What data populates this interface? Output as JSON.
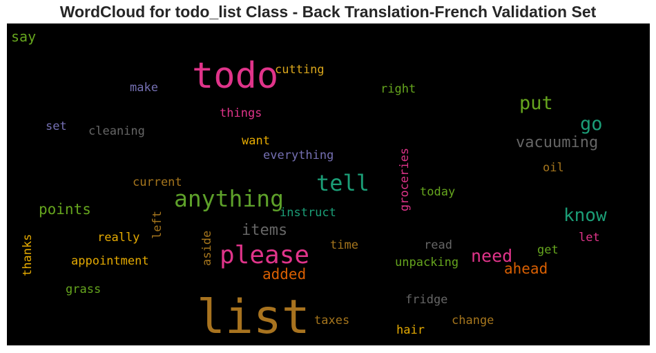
{
  "title": "WordCloud for todo_list Class - Back Translation-French Validation Set",
  "words": [
    {
      "text": "list",
      "color": "#a8731f",
      "size": 68,
      "vertical": false
    },
    {
      "text": "todo",
      "color": "#e0348a",
      "size": 52,
      "vertical": false
    },
    {
      "text": "please",
      "color": "#e0348a",
      "size": 36,
      "vertical": false
    },
    {
      "text": "anything",
      "color": "#5ea12a",
      "size": 33,
      "vertical": false
    },
    {
      "text": "tell",
      "color": "#1b9e77",
      "size": 32,
      "vertical": false
    },
    {
      "text": "put",
      "color": "#66a61e",
      "size": 27,
      "vertical": false
    },
    {
      "text": "go",
      "color": "#1b9e77",
      "size": 27,
      "vertical": false
    },
    {
      "text": "know",
      "color": "#1b9e77",
      "size": 26,
      "vertical": false
    },
    {
      "text": "need",
      "color": "#e0348a",
      "size": 25,
      "vertical": false
    },
    {
      "text": "vacuuming",
      "color": "#666666",
      "size": 22,
      "vertical": false
    },
    {
      "text": "items",
      "color": "#666666",
      "size": 22,
      "vertical": false
    },
    {
      "text": "points",
      "color": "#66a61e",
      "size": 21,
      "vertical": false
    },
    {
      "text": "ahead",
      "color": "#d95f02",
      "size": 21,
      "vertical": false
    },
    {
      "text": "added",
      "color": "#d95f02",
      "size": 21,
      "vertical": false
    },
    {
      "text": "say",
      "color": "#66a61e",
      "size": 20,
      "vertical": false
    },
    {
      "text": "cutting",
      "color": "#d9a61c",
      "size": 17,
      "vertical": false
    },
    {
      "text": "make",
      "color": "#7570b3",
      "size": 17,
      "vertical": false
    },
    {
      "text": "right",
      "color": "#66a61e",
      "size": 17,
      "vertical": false
    },
    {
      "text": "things",
      "color": "#e0348a",
      "size": 17,
      "vertical": false
    },
    {
      "text": "set",
      "color": "#7570b3",
      "size": 17,
      "vertical": false
    },
    {
      "text": "cleaning",
      "color": "#666666",
      "size": 17,
      "vertical": false
    },
    {
      "text": "want",
      "color": "#e6ab02",
      "size": 17,
      "vertical": false
    },
    {
      "text": "everything",
      "color": "#7570b3",
      "size": 17,
      "vertical": false
    },
    {
      "text": "oil",
      "color": "#a6761d",
      "size": 17,
      "vertical": false
    },
    {
      "text": "current",
      "color": "#a6761d",
      "size": 17,
      "vertical": false
    },
    {
      "text": "today",
      "color": "#66a61e",
      "size": 17,
      "vertical": false
    },
    {
      "text": "instruct",
      "color": "#1b9e77",
      "size": 17,
      "vertical": false
    },
    {
      "text": "really",
      "color": "#e6ab02",
      "size": 17,
      "vertical": false
    },
    {
      "text": "let",
      "color": "#e0348a",
      "size": 17,
      "vertical": false
    },
    {
      "text": "read",
      "color": "#666666",
      "size": 17,
      "vertical": false
    },
    {
      "text": "time",
      "color": "#a6761d",
      "size": 17,
      "vertical": false
    },
    {
      "text": "get",
      "color": "#66a61e",
      "size": 17,
      "vertical": false
    },
    {
      "text": "appointment",
      "color": "#e6ab02",
      "size": 17,
      "vertical": false
    },
    {
      "text": "unpacking",
      "color": "#66a61e",
      "size": 17,
      "vertical": false
    },
    {
      "text": "grass",
      "color": "#66a61e",
      "size": 17,
      "vertical": false
    },
    {
      "text": "fridge",
      "color": "#666666",
      "size": 17,
      "vertical": false
    },
    {
      "text": "taxes",
      "color": "#a6761d",
      "size": 17,
      "vertical": false
    },
    {
      "text": "change",
      "color": "#a6761d",
      "size": 17,
      "vertical": false
    },
    {
      "text": "hair",
      "color": "#e6ab02",
      "size": 17,
      "vertical": false
    },
    {
      "text": "groceries",
      "color": "#e0348a",
      "size": 17,
      "vertical": true
    },
    {
      "text": "left",
      "color": "#a6761d",
      "size": 17,
      "vertical": true
    },
    {
      "text": "aside",
      "color": "#a6761d",
      "size": 17,
      "vertical": true
    },
    {
      "text": "thanks",
      "color": "#e6ab02",
      "size": 17,
      "vertical": true
    }
  ]
}
